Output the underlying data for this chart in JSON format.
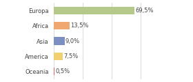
{
  "categories": [
    "Europa",
    "Africa",
    "Asia",
    "America",
    "Oceania"
  ],
  "values": [
    69.5,
    13.5,
    9.0,
    7.5,
    0.5
  ],
  "labels": [
    "69,5%",
    "13,5%",
    "9,0%",
    "7,5%",
    "0,5%"
  ],
  "bar_colors": [
    "#b5c98a",
    "#f0a870",
    "#7b8fc0",
    "#f0d070",
    "#e06060"
  ],
  "background_color": "#ffffff",
  "xlim": [
    0,
    100
  ],
  "label_fontsize": 6.0,
  "tick_fontsize": 6.0,
  "grid_color": "#cccccc",
  "grid_positions": [
    0,
    25,
    50,
    75,
    100
  ]
}
